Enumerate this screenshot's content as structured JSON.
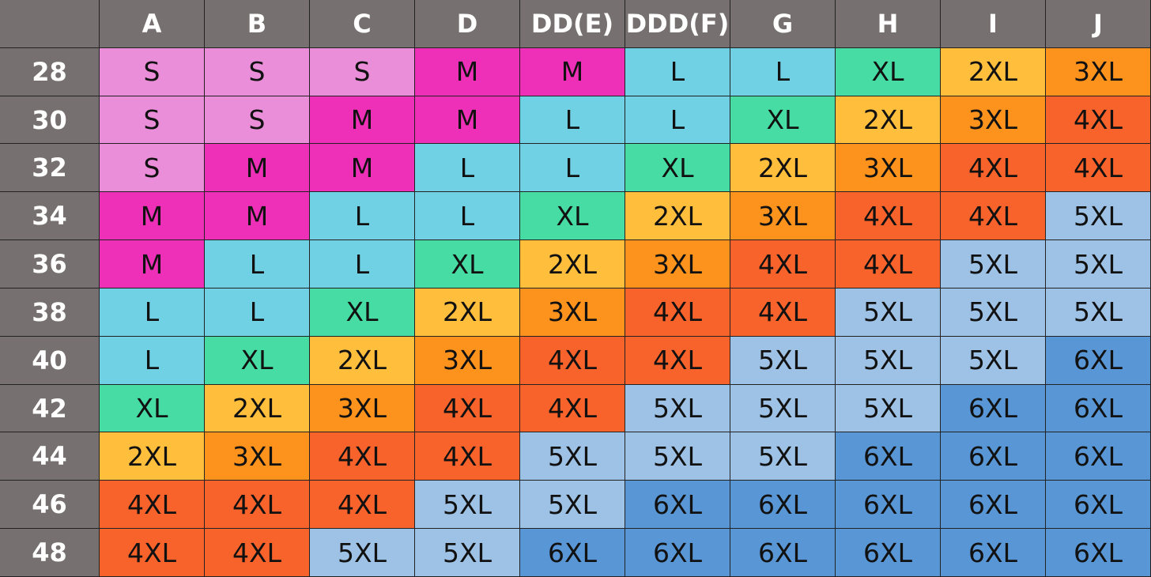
{
  "table": {
    "columns": [
      "A",
      "B",
      "C",
      "D",
      "DD(E)",
      "DDD(F)",
      "G",
      "H",
      "I",
      "J"
    ],
    "rows": [
      {
        "band": 28,
        "cells": [
          "S",
          "S",
          "S",
          "M",
          "M",
          "L",
          "L",
          "XL",
          "2XL",
          "3XL"
        ]
      },
      {
        "band": 30,
        "cells": [
          "S",
          "S",
          "M",
          "M",
          "L",
          "L",
          "XL",
          "2XL",
          "3XL",
          "4XL"
        ]
      },
      {
        "band": 32,
        "cells": [
          "S",
          "M",
          "M",
          "L",
          "L",
          "XL",
          "2XL",
          "3XL",
          "4XL",
          "4XL"
        ]
      },
      {
        "band": 34,
        "cells": [
          "M",
          "M",
          "L",
          "L",
          "XL",
          "2XL",
          "3XL",
          "4XL",
          "4XL",
          "5XL"
        ]
      },
      {
        "band": 36,
        "cells": [
          "M",
          "L",
          "L",
          "XL",
          "2XL",
          "3XL",
          "4XL",
          "4XL",
          "5XL",
          "5XL"
        ]
      },
      {
        "band": 38,
        "cells": [
          "L",
          "L",
          "XL",
          "2XL",
          "3XL",
          "4XL",
          "4XL",
          "5XL",
          "5XL",
          "5XL"
        ]
      },
      {
        "band": 40,
        "cells": [
          "L",
          "XL",
          "2XL",
          "3XL",
          "4XL",
          "4XL",
          "5XL",
          "5XL",
          "5XL",
          "6XL"
        ]
      },
      {
        "band": 42,
        "cells": [
          "XL",
          "2XL",
          "3XL",
          "4XL",
          "4XL",
          "5XL",
          "5XL",
          "5XL",
          "6XL",
          "6XL"
        ]
      },
      {
        "band": 44,
        "cells": [
          "2XL",
          "3XL",
          "4XL",
          "4XL",
          "5XL",
          "5XL",
          "5XL",
          "6XL",
          "6XL",
          "6XL"
        ]
      },
      {
        "band": 46,
        "cells": [
          "4XL",
          "4XL",
          "4XL",
          "5XL",
          "5XL",
          "6XL",
          "6XL",
          "6XL",
          "6XL",
          "6XL"
        ]
      },
      {
        "band": 48,
        "cells": [
          "4XL",
          "4XL",
          "5XL",
          "5XL",
          "6XL",
          "6XL",
          "6XL",
          "6XL",
          "6XL",
          "6XL"
        ]
      }
    ],
    "size_colors": {
      "S": "#ea8ed9",
      "M": "#ee30b8",
      "L": "#71d1e4",
      "XL": "#46dca4",
      "2XL": "#ffbe3b",
      "3XL": "#fd931d",
      "4XL": "#f8632b",
      "5XL": "#9ec2e6",
      "6XL": "#5996d5"
    }
  }
}
